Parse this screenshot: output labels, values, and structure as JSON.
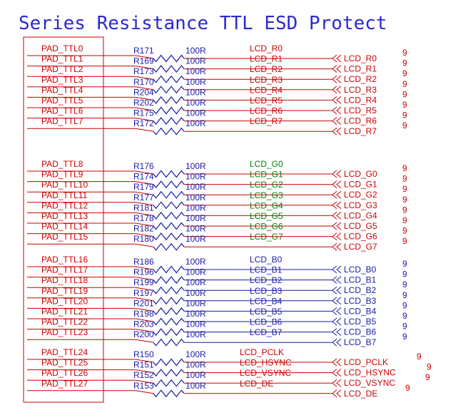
{
  "title": "Series Resistance TTL ESD Protect",
  "colors": {
    "wire_red": "#cc0000",
    "wire_blue": "#1a1aa8",
    "resistor": "#1a1aa8",
    "label_red": "#cc0000",
    "label_green": "#008000",
    "label_blue": "#1a1aa8",
    "box": "#cc0000",
    "title": "#2a2ad0"
  },
  "groups": [
    {
      "color": "red",
      "rows": [
        {
          "pad": "PAD_TTL0",
          "ref": "R171",
          "value": "100R",
          "net": "LCD_R0",
          "port": "LCD_R0",
          "page": "9"
        },
        {
          "pad": "PAD_TTL1",
          "ref": "R169",
          "value": "100R",
          "net": "LCD_R1",
          "port": "LCD_R1",
          "page": "9"
        },
        {
          "pad": "PAD_TTL2",
          "ref": "R173",
          "value": "100R",
          "net": "LCD_R2",
          "port": "LCD_R2",
          "page": "9"
        },
        {
          "pad": "PAD_TTL3",
          "ref": "R170",
          "value": "100R",
          "net": "LCD_R3",
          "port": "LCD_R3",
          "page": "9"
        },
        {
          "pad": "PAD_TTL4",
          "ref": "R204",
          "value": "100R",
          "net": "LCD_R4",
          "port": "LCD_R4",
          "page": "9"
        },
        {
          "pad": "PAD_TTL5",
          "ref": "R202",
          "value": "100R",
          "net": "LCD_R5",
          "port": "LCD_R5",
          "page": "9"
        },
        {
          "pad": "PAD_TTL6",
          "ref": "R175",
          "value": "100R",
          "net": "LCD_R6",
          "port": "LCD_R6",
          "page": "9"
        },
        {
          "pad": "PAD_TTL7",
          "ref": "R172",
          "value": "100R",
          "net": "LCD_R7",
          "port": "LCD_R7",
          "page": "9"
        }
      ]
    },
    {
      "color": "green",
      "rows": [
        {
          "pad": "PAD_TTL8",
          "ref": "R176",
          "value": "100R",
          "net": "LCD_G0",
          "port": "LCD_G0",
          "page": "9"
        },
        {
          "pad": "PAD_TTL9",
          "ref": "R174",
          "value": "100R",
          "net": "LCD_G1",
          "port": "LCD_G1",
          "page": "9"
        },
        {
          "pad": "PAD_TTL10",
          "ref": "R179",
          "value": "100R",
          "net": "LCD_G2",
          "port": "LCD_G2",
          "page": "9"
        },
        {
          "pad": "PAD_TTL11",
          "ref": "R177",
          "value": "100R",
          "net": "LCD_G3",
          "port": "LCD_G3",
          "page": "9"
        },
        {
          "pad": "PAD_TTL12",
          "ref": "R181",
          "value": "100R",
          "net": "LCD_G4",
          "port": "LCD_G4",
          "page": "9"
        },
        {
          "pad": "PAD_TTL13",
          "ref": "R178",
          "value": "100R",
          "net": "LCD_G5",
          "port": "LCD_G5",
          "page": "9"
        },
        {
          "pad": "PAD_TTL14",
          "ref": "R182",
          "value": "100R",
          "net": "LCD_G6",
          "port": "LCD_G6",
          "page": "9"
        },
        {
          "pad": "PAD_TTL15",
          "ref": "R180",
          "value": "100R",
          "net": "LCD_G7",
          "port": "LCD_G7",
          "page": "9"
        }
      ]
    },
    {
      "color": "blue",
      "rows": [
        {
          "pad": "PAD_TTL16",
          "ref": "R186",
          "value": "100R",
          "net": "LCD_B0",
          "port": "LCD_B0",
          "page": "9"
        },
        {
          "pad": "PAD_TTL17",
          "ref": "R196",
          "value": "100R",
          "net": "LCD_B1",
          "port": "LCD_B1",
          "page": "9"
        },
        {
          "pad": "PAD_TTL18",
          "ref": "R199",
          "value": "100R",
          "net": "LCD_B2",
          "port": "LCD_B2",
          "page": "9"
        },
        {
          "pad": "PAD_TTL19",
          "ref": "R197",
          "value": "100R",
          "net": "LCD_B3",
          "port": "LCD_B3",
          "page": "9"
        },
        {
          "pad": "PAD_TTL20",
          "ref": "R201",
          "value": "100R",
          "net": "LCD_B4",
          "port": "LCD_B4",
          "page": "9"
        },
        {
          "pad": "PAD_TTL21",
          "ref": "R198",
          "value": "100R",
          "net": "LCD_B5",
          "port": "LCD_B5",
          "page": "9"
        },
        {
          "pad": "PAD_TTL22",
          "ref": "R203",
          "value": "100R",
          "net": "LCD_B6",
          "port": "LCD_B6",
          "page": "9"
        },
        {
          "pad": "PAD_TTL23",
          "ref": "R200",
          "value": "100R",
          "net": "LCD_B7",
          "port": "LCD_B7",
          "page": "9"
        }
      ]
    },
    {
      "color": "red",
      "rows": [
        {
          "pad": "PAD_TTL24",
          "ref": "R150",
          "value": "100R",
          "net": "LCD_PCLK",
          "port": "LCD_PCLK",
          "page": "9"
        },
        {
          "pad": "PAD_TTL25",
          "ref": "R151",
          "value": "100R",
          "net": "LCD_HSYNC",
          "port": "LCD_HSYNC",
          "page": "9"
        },
        {
          "pad": "PAD_TTL26",
          "ref": "R152",
          "value": "100R",
          "net": "LCD_VSYNC",
          "port": "LCD_VSYNC",
          "page": "9"
        },
        {
          "pad": "PAD_TTL27",
          "ref": "R153",
          "value": "100R",
          "net": "LCD_DE",
          "port": "LCD_DE",
          "page": "9"
        }
      ]
    }
  ]
}
